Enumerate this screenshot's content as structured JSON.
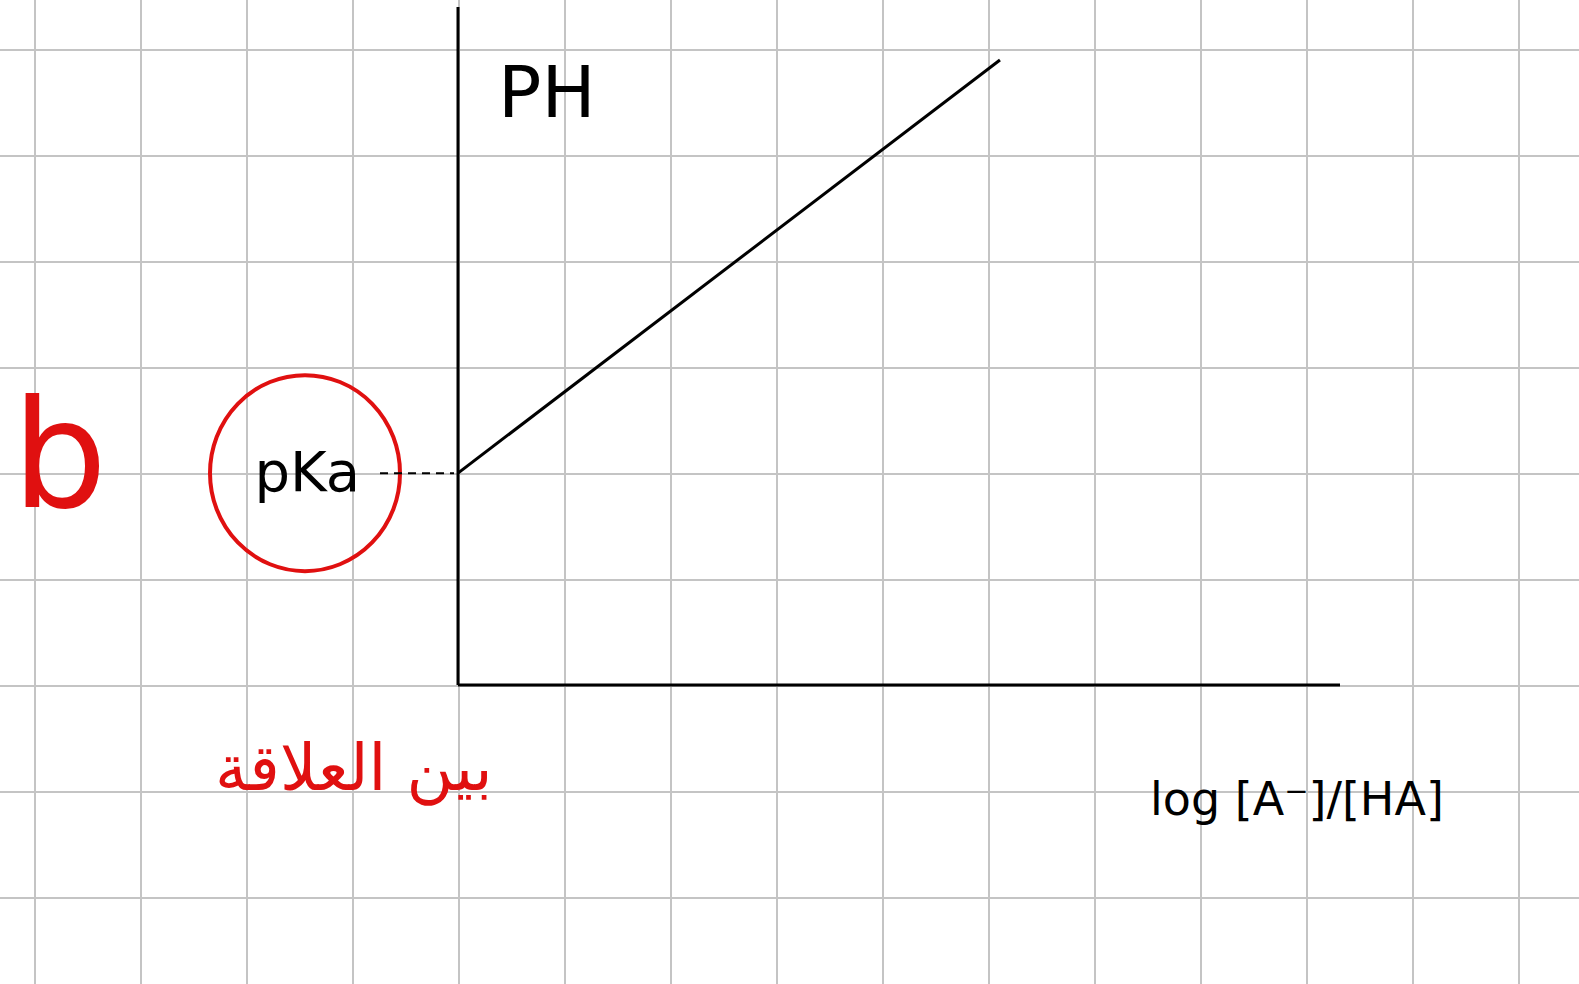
{
  "chart_data": {
    "type": "line",
    "y_label": "PH",
    "x_label": "log [A⁻]/[HA]",
    "x": [
      0,
      5.1
    ],
    "values": [
      2.0,
      5.9
    ],
    "color": "#000000",
    "line_style": "solid",
    "xlim": [
      0,
      8.3
    ],
    "ylim": [
      0,
      6.4
    ],
    "xticks": [],
    "yticks": [
      {
        "value": 2.0,
        "label": "pKa"
      }
    ],
    "tick_labels": "y",
    "annotations": [
      {
        "text": "b",
        "color": "#e01010"
      },
      {
        "text": "بين العلاقة",
        "color": "#e01010"
      }
    ]
  }
}
